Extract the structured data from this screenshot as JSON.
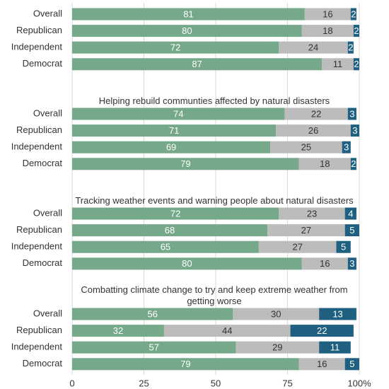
{
  "chart_data": {
    "type": "bar",
    "stacked": true,
    "orientation": "horizontal",
    "xlim": [
      0,
      100
    ],
    "xticks": [
      0,
      25,
      50,
      75,
      {
        "value": 100,
        "label": "100%"
      }
    ],
    "grid": true,
    "panels": [
      {
        "categories": [
          "Overall",
          "Republican",
          "Independent",
          "Democrat"
        ],
        "series": [
          {
            "color": "#76a88a",
            "values": [
              81,
              80,
              72,
              87
            ]
          },
          {
            "color": "#bcbcbc",
            "values": [
              16,
              18,
              24,
              11
            ]
          },
          {
            "color": "#1f5f80",
            "values": [
              2,
              2,
              2,
              2
            ]
          }
        ]
      },
      {
        "title": "Helping rebuild communties affected by natural disasters",
        "categories": [
          "Overall",
          "Republican",
          "Independent",
          "Democrat"
        ],
        "series": [
          {
            "color": "#76a88a",
            "values": [
              74,
              71,
              69,
              79
            ]
          },
          {
            "color": "#bcbcbc",
            "values": [
              22,
              26,
              25,
              18
            ]
          },
          {
            "color": "#1f5f80",
            "values": [
              3,
              3,
              3,
              2
            ]
          }
        ]
      },
      {
        "title": "Tracking weather events and warning people about natural disasters",
        "categories": [
          "Overall",
          "Republican",
          "Independent",
          "Democrat"
        ],
        "series": [
          {
            "color": "#76a88a",
            "values": [
              72,
              68,
              65,
              80
            ]
          },
          {
            "color": "#bcbcbc",
            "values": [
              23,
              27,
              27,
              16
            ]
          },
          {
            "color": "#1f5f80",
            "values": [
              4,
              5,
              5,
              3
            ]
          }
        ]
      },
      {
        "title": "Combatting climate change to try and keep extreme weather from getting worse",
        "categories": [
          "Overall",
          "Republican",
          "Independent",
          "Democrat"
        ],
        "series": [
          {
            "color": "#76a88a",
            "values": [
              56,
              32,
              57,
              79
            ]
          },
          {
            "color": "#bcbcbc",
            "values": [
              30,
              44,
              29,
              16
            ]
          },
          {
            "color": "#1f5f80",
            "values": [
              13,
              22,
              11,
              5
            ]
          }
        ]
      }
    ]
  }
}
